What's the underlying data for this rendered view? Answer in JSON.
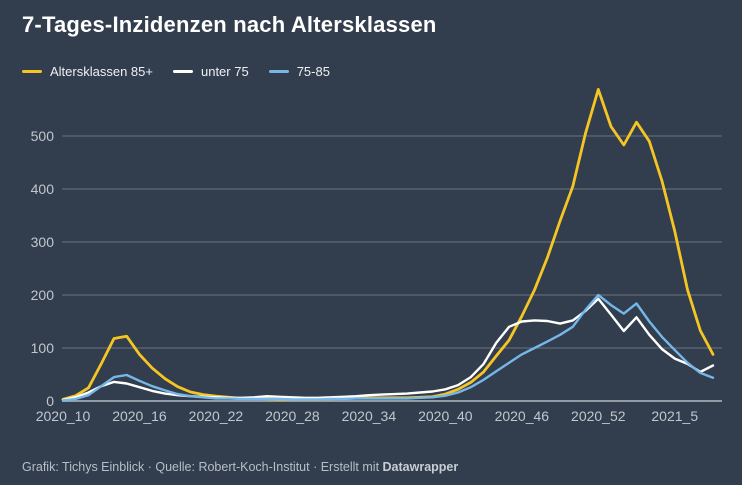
{
  "header": {
    "title": "7-Tages-Inzidenzen nach Altersklassen"
  },
  "legend": {
    "items": [
      {
        "label": "Altersklassen 85+",
        "color": "#f5c623"
      },
      {
        "label": "unter 75",
        "color": "#ffffff"
      },
      {
        "label": "75-85",
        "color": "#76b7e8"
      }
    ]
  },
  "chart_data": {
    "type": "line",
    "title": "7-Tages-Inzidenzen nach Altersklassen",
    "xlabel": "",
    "ylabel": "",
    "ylim": [
      0,
      500
    ],
    "y_ticks": [
      0,
      100,
      200,
      300,
      400,
      500
    ],
    "grid": "horizontal",
    "legend_position": "top-left",
    "background_color": "#323d4d",
    "gridline_color": "rgba(255,255,255,0.28)",
    "zeroline_color": "#929ca7",
    "tick_label_color": "#c0c7cf",
    "categories": [
      "2020_10",
      "2020_11",
      "2020_12",
      "2020_13",
      "2020_14",
      "2020_15",
      "2020_16",
      "2020_17",
      "2020_18",
      "2020_19",
      "2020_20",
      "2020_21",
      "2020_22",
      "2020_23",
      "2020_24",
      "2020_25",
      "2020_26",
      "2020_27",
      "2020_28",
      "2020_29",
      "2020_30",
      "2020_31",
      "2020_32",
      "2020_33",
      "2020_34",
      "2020_35",
      "2020_36",
      "2020_37",
      "2020_38",
      "2020_39",
      "2020_40",
      "2020_41",
      "2020_42",
      "2020_43",
      "2020_44",
      "2020_45",
      "2020_46",
      "2020_47",
      "2020_48",
      "2020_49",
      "2020_50",
      "2020_51",
      "2020_52",
      "2020_53",
      "2021_1",
      "2021_2",
      "2021_3",
      "2021_4",
      "2021_5",
      "2021_6",
      "2021_7",
      "2021_8"
    ],
    "x_tick_labels": [
      "2020_10",
      "2020_16",
      "2020_22",
      "2020_28",
      "2020_34",
      "2020_40",
      "2020_46",
      "2020_52",
      "2021_5"
    ],
    "x_tick_indices": [
      0,
      6,
      12,
      18,
      24,
      30,
      36,
      42,
      48
    ],
    "series": [
      {
        "name": "Altersklassen 85+",
        "color": "#f5c623",
        "values": [
          3,
          10,
          25,
          70,
          118,
          122,
          88,
          62,
          42,
          27,
          17,
          12,
          9,
          7,
          5,
          5,
          4,
          3,
          3,
          3,
          3,
          4,
          5,
          6,
          6,
          6,
          6,
          6,
          7,
          8,
          13,
          22,
          35,
          55,
          85,
          115,
          160,
          210,
          270,
          340,
          405,
          505,
          588,
          518,
          483,
          526,
          490,
          415,
          320,
          210,
          133,
          88
        ]
      },
      {
        "name": "unter 75",
        "color": "#ffffff",
        "values": [
          2,
          7,
          16,
          28,
          36,
          33,
          26,
          19,
          14,
          11,
          9,
          8,
          7,
          6,
          6,
          7,
          9,
          8,
          7,
          6,
          6,
          7,
          8,
          9,
          11,
          12,
          13,
          14,
          16,
          18,
          22,
          30,
          45,
          70,
          110,
          140,
          150,
          152,
          151,
          146,
          152,
          170,
          193,
          163,
          132,
          158,
          125,
          98,
          80,
          70,
          55,
          67
        ]
      },
      {
        "name": "75-85",
        "color": "#76b7e8",
        "values": [
          1,
          4,
          11,
          28,
          45,
          49,
          38,
          28,
          20,
          13,
          9,
          7,
          5,
          5,
          4,
          4,
          4,
          4,
          3,
          3,
          3,
          4,
          4,
          5,
          5,
          5,
          5,
          5,
          6,
          7,
          10,
          16,
          26,
          40,
          56,
          72,
          88,
          100,
          112,
          125,
          140,
          172,
          200,
          181,
          165,
          184,
          150,
          121,
          96,
          72,
          53,
          44
        ]
      }
    ]
  },
  "footer": {
    "prefix": "Grafik: Tichys Einblick · Quelle: Robert-Koch-Institut · Erstellt mit ",
    "brand": "Datawrapper"
  }
}
